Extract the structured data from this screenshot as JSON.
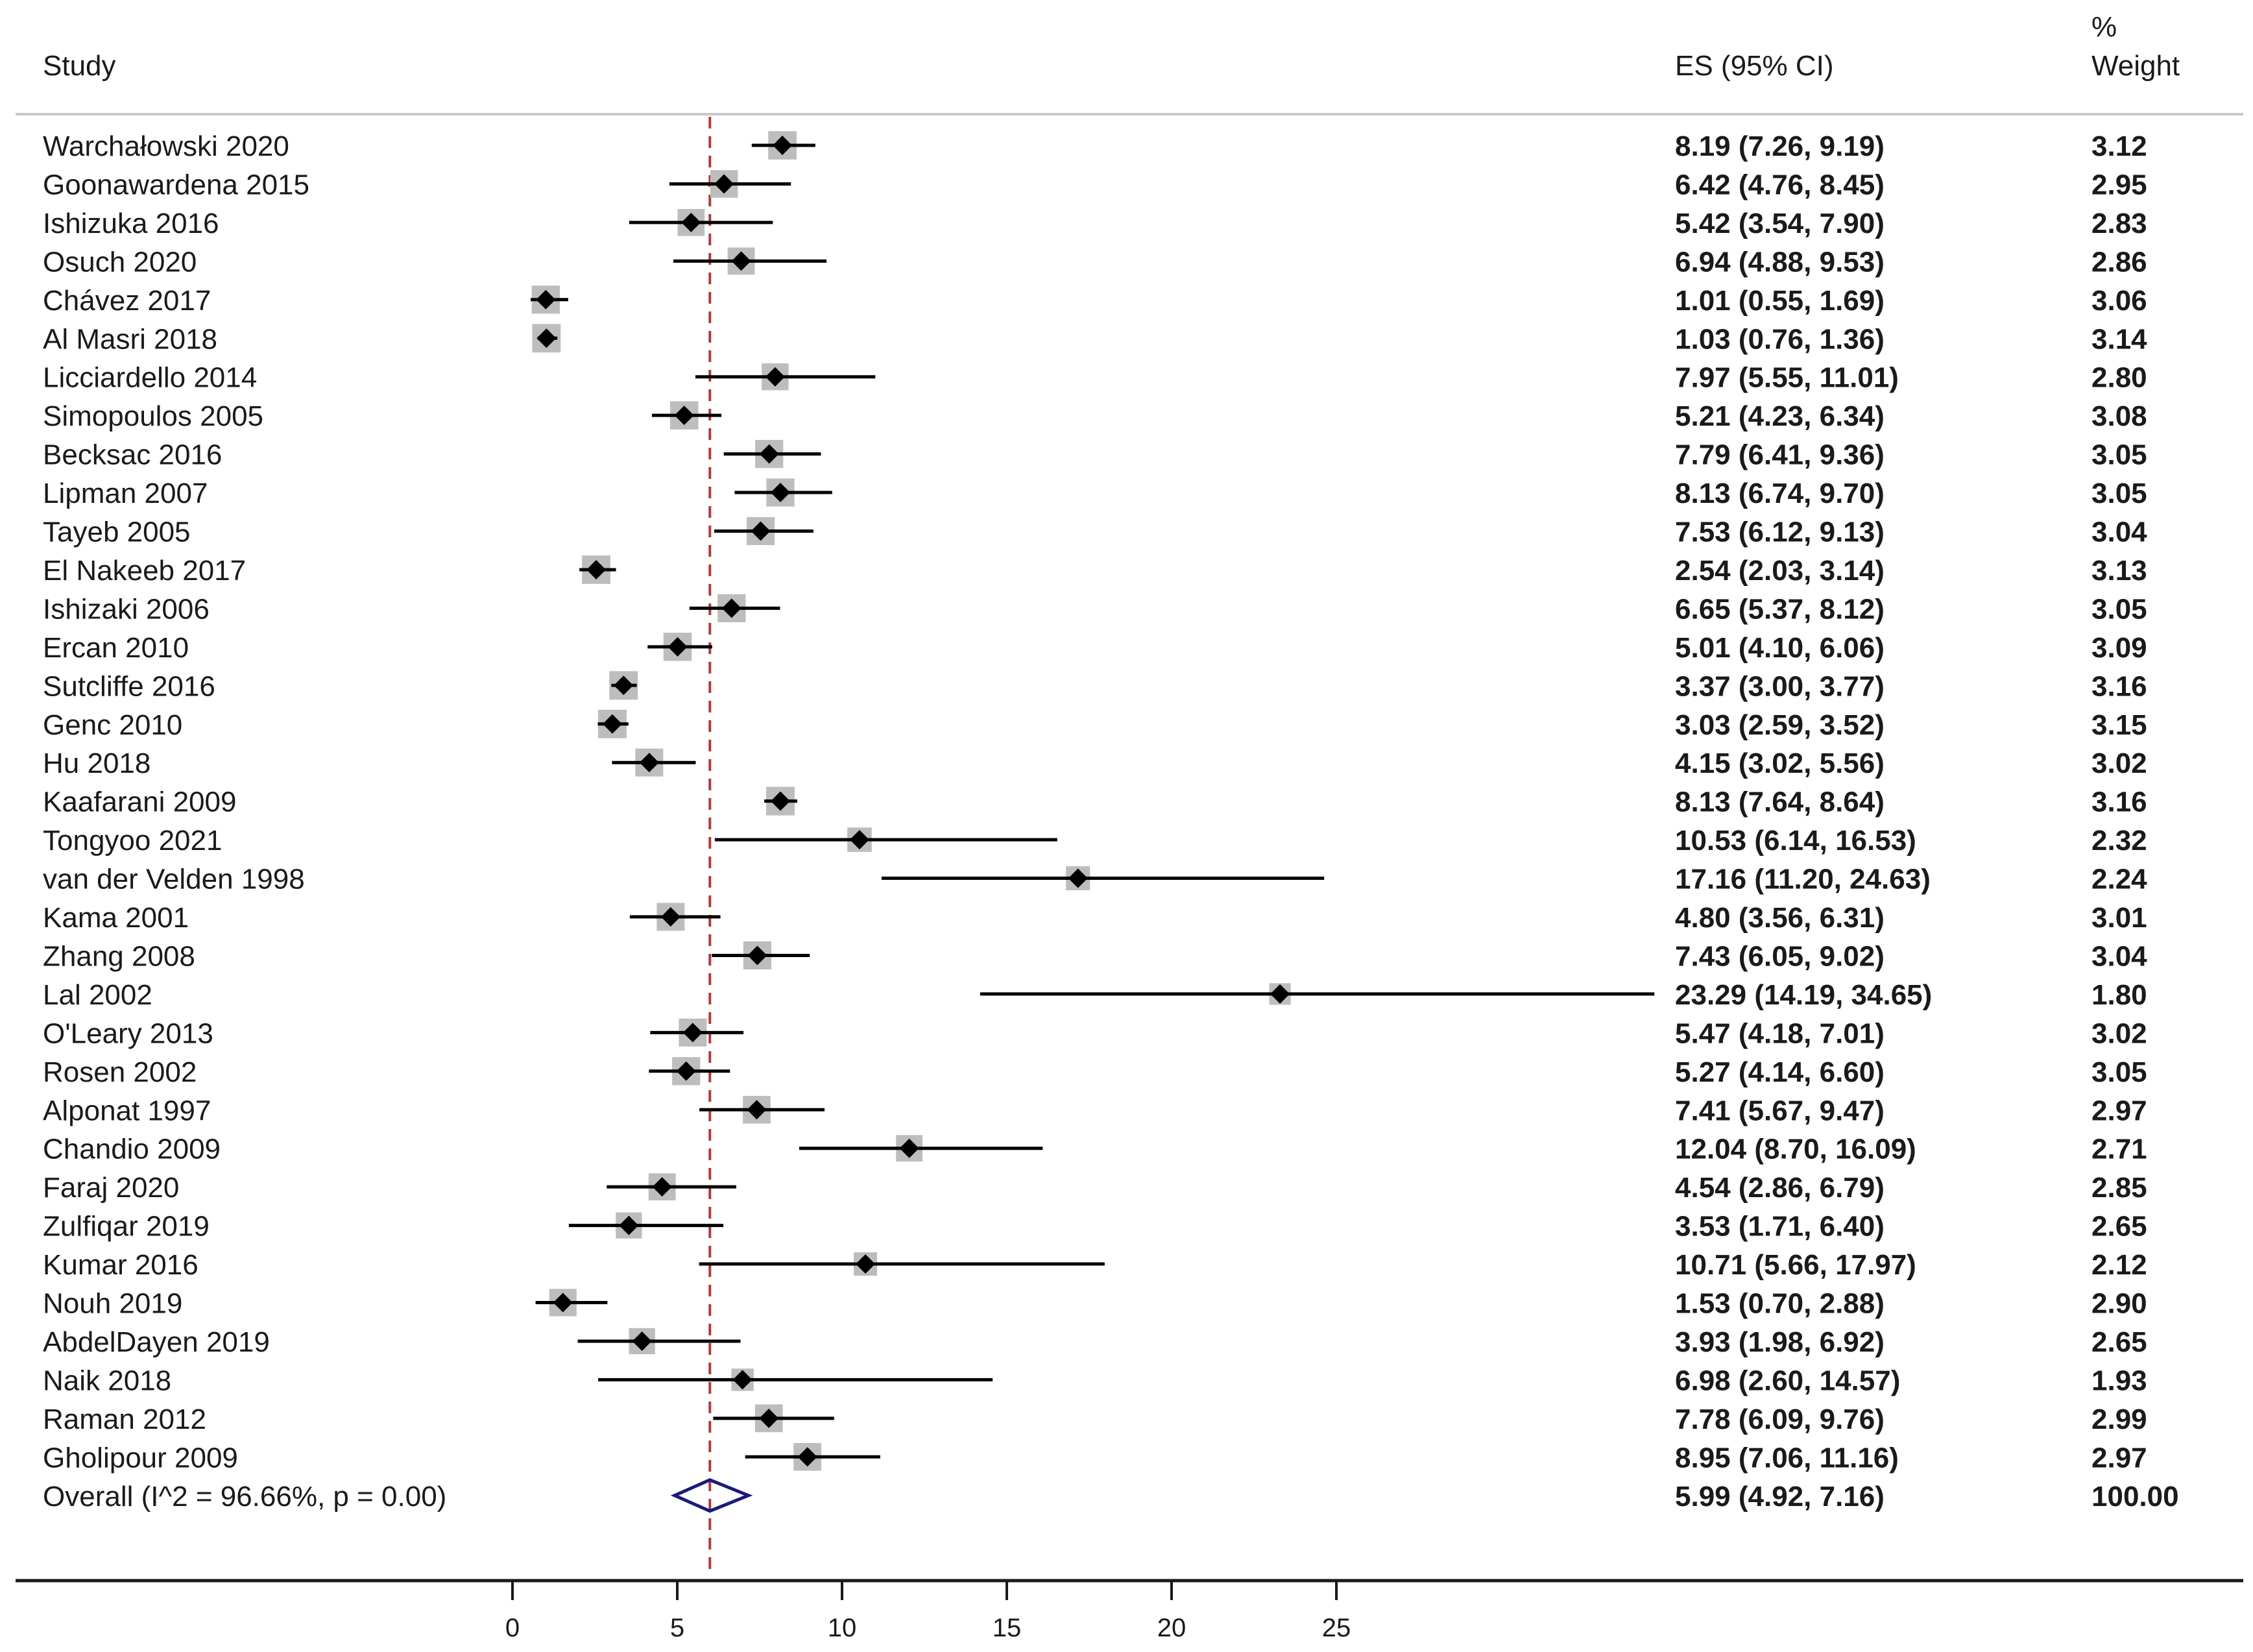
{
  "chart_data": {
    "type": "forest",
    "headers": {
      "study": "Study",
      "es": "ES (95% CI)",
      "weight_line1": "%",
      "weight_line2": "Weight"
    },
    "studies": [
      {
        "name": "Warchałowski 2020",
        "es": 8.19,
        "lo": 7.26,
        "hi": 9.19,
        "ci_text": "8.19 (7.26, 9.19)",
        "weight": "3.12"
      },
      {
        "name": "Goonawardena 2015",
        "es": 6.42,
        "lo": 4.76,
        "hi": 8.45,
        "ci_text": "6.42 (4.76, 8.45)",
        "weight": "2.95"
      },
      {
        "name": "Ishizuka 2016",
        "es": 5.42,
        "lo": 3.54,
        "hi": 7.9,
        "ci_text": "5.42 (3.54, 7.90)",
        "weight": "2.83"
      },
      {
        "name": "Osuch 2020",
        "es": 6.94,
        "lo": 4.88,
        "hi": 9.53,
        "ci_text": "6.94 (4.88, 9.53)",
        "weight": "2.86"
      },
      {
        "name": "Chávez 2017",
        "es": 1.01,
        "lo": 0.55,
        "hi": 1.69,
        "ci_text": "1.01 (0.55, 1.69)",
        "weight": "3.06"
      },
      {
        "name": "Al Masri 2018",
        "es": 1.03,
        "lo": 0.76,
        "hi": 1.36,
        "ci_text": "1.03 (0.76, 1.36)",
        "weight": "3.14"
      },
      {
        "name": "Licciardello 2014",
        "es": 7.97,
        "lo": 5.55,
        "hi": 11.01,
        "ci_text": "7.97 (5.55, 11.01)",
        "weight": "2.80"
      },
      {
        "name": "Simopoulos 2005",
        "es": 5.21,
        "lo": 4.23,
        "hi": 6.34,
        "ci_text": "5.21 (4.23, 6.34)",
        "weight": "3.08"
      },
      {
        "name": "Becksac 2016",
        "es": 7.79,
        "lo": 6.41,
        "hi": 9.36,
        "ci_text": "7.79 (6.41, 9.36)",
        "weight": "3.05"
      },
      {
        "name": "Lipman 2007",
        "es": 8.13,
        "lo": 6.74,
        "hi": 9.7,
        "ci_text": "8.13 (6.74, 9.70)",
        "weight": "3.05"
      },
      {
        "name": "Tayeb 2005",
        "es": 7.53,
        "lo": 6.12,
        "hi": 9.13,
        "ci_text": "7.53 (6.12, 9.13)",
        "weight": "3.04"
      },
      {
        "name": "El Nakeeb 2017",
        "es": 2.54,
        "lo": 2.03,
        "hi": 3.14,
        "ci_text": "2.54 (2.03, 3.14)",
        "weight": "3.13"
      },
      {
        "name": "Ishizaki 2006",
        "es": 6.65,
        "lo": 5.37,
        "hi": 8.12,
        "ci_text": "6.65 (5.37, 8.12)",
        "weight": "3.05"
      },
      {
        "name": "Ercan 2010",
        "es": 5.01,
        "lo": 4.1,
        "hi": 6.06,
        "ci_text": "5.01 (4.10, 6.06)",
        "weight": "3.09"
      },
      {
        "name": "Sutcliffe 2016",
        "es": 3.37,
        "lo": 3.0,
        "hi": 3.77,
        "ci_text": "3.37 (3.00, 3.77)",
        "weight": "3.16"
      },
      {
        "name": "Genc 2010",
        "es": 3.03,
        "lo": 2.59,
        "hi": 3.52,
        "ci_text": "3.03 (2.59, 3.52)",
        "weight": "3.15"
      },
      {
        "name": "Hu 2018",
        "es": 4.15,
        "lo": 3.02,
        "hi": 5.56,
        "ci_text": "4.15 (3.02, 5.56)",
        "weight": "3.02"
      },
      {
        "name": "Kaafarani 2009",
        "es": 8.13,
        "lo": 7.64,
        "hi": 8.64,
        "ci_text": "8.13 (7.64, 8.64)",
        "weight": "3.16"
      },
      {
        "name": "Tongyoo 2021",
        "es": 10.53,
        "lo": 6.14,
        "hi": 16.53,
        "ci_text": "10.53 (6.14, 16.53)",
        "weight": "2.32"
      },
      {
        "name": "van der Velden 1998",
        "es": 17.16,
        "lo": 11.2,
        "hi": 24.63,
        "ci_text": "17.16 (11.20, 24.63)",
        "weight": "2.24"
      },
      {
        "name": "Kama 2001",
        "es": 4.8,
        "lo": 3.56,
        "hi": 6.31,
        "ci_text": "4.80 (3.56, 6.31)",
        "weight": "3.01"
      },
      {
        "name": "Zhang 2008",
        "es": 7.43,
        "lo": 6.05,
        "hi": 9.02,
        "ci_text": "7.43 (6.05, 9.02)",
        "weight": "3.04"
      },
      {
        "name": "Lal 2002",
        "es": 23.29,
        "lo": 14.19,
        "hi": 34.65,
        "ci_text": "23.29 (14.19, 34.65)",
        "weight": "1.80"
      },
      {
        "name": "O'Leary 2013",
        "es": 5.47,
        "lo": 4.18,
        "hi": 7.01,
        "ci_text": "5.47 (4.18, 7.01)",
        "weight": "3.02"
      },
      {
        "name": "Rosen 2002",
        "es": 5.27,
        "lo": 4.14,
        "hi": 6.6,
        "ci_text": "5.27 (4.14, 6.60)",
        "weight": "3.05"
      },
      {
        "name": "Alponat 1997",
        "es": 7.41,
        "lo": 5.67,
        "hi": 9.47,
        "ci_text": "7.41 (5.67, 9.47)",
        "weight": "2.97"
      },
      {
        "name": "Chandio 2009",
        "es": 12.04,
        "lo": 8.7,
        "hi": 16.09,
        "ci_text": "12.04 (8.70, 16.09)",
        "weight": "2.71"
      },
      {
        "name": "Faraj 2020",
        "es": 4.54,
        "lo": 2.86,
        "hi": 6.79,
        "ci_text": "4.54 (2.86, 6.79)",
        "weight": "2.85"
      },
      {
        "name": "Zulfiqar 2019",
        "es": 3.53,
        "lo": 1.71,
        "hi": 6.4,
        "ci_text": "3.53 (1.71, 6.40)",
        "weight": "2.65"
      },
      {
        "name": "Kumar 2016",
        "es": 10.71,
        "lo": 5.66,
        "hi": 17.97,
        "ci_text": "10.71 (5.66, 17.97)",
        "weight": "2.12"
      },
      {
        "name": "Nouh 2019",
        "es": 1.53,
        "lo": 0.7,
        "hi": 2.88,
        "ci_text": "1.53 (0.70, 2.88)",
        "weight": "2.90"
      },
      {
        "name": "AbdelDayen 2019",
        "es": 3.93,
        "lo": 1.98,
        "hi": 6.92,
        "ci_text": "3.93 (1.98, 6.92)",
        "weight": "2.65"
      },
      {
        "name": "Naik 2018",
        "es": 6.98,
        "lo": 2.6,
        "hi": 14.57,
        "ci_text": "6.98 (2.60, 14.57)",
        "weight": "1.93"
      },
      {
        "name": "Raman 2012",
        "es": 7.78,
        "lo": 6.09,
        "hi": 9.76,
        "ci_text": "7.78 (6.09, 9.76)",
        "weight": "2.99"
      },
      {
        "name": "Gholipour 2009",
        "es": 8.95,
        "lo": 7.06,
        "hi": 11.16,
        "ci_text": "8.95 (7.06, 11.16)",
        "weight": "2.97"
      }
    ],
    "overall": {
      "label": "Overall  (I^2 = 96.66%, p = 0.00)",
      "es": 5.99,
      "lo": 4.92,
      "hi": 7.16,
      "ci_text": "5.99 (4.92, 7.16)",
      "weight": "100.00"
    },
    "x_axis": {
      "ticks": [
        0,
        5,
        10,
        15,
        20,
        25
      ],
      "tick_labels": [
        "0",
        "5",
        "10",
        "15",
        "20",
        "25"
      ],
      "display_max": 34.65
    },
    "reference_line": 5.99,
    "colors": {
      "marker": "#000000",
      "weight_box": "#bdbdbd",
      "ci_line": "#000000",
      "reference_line": "#b03a3a",
      "overall_diamond": "#1a1a7a",
      "separator": "#c8c8c8"
    }
  }
}
